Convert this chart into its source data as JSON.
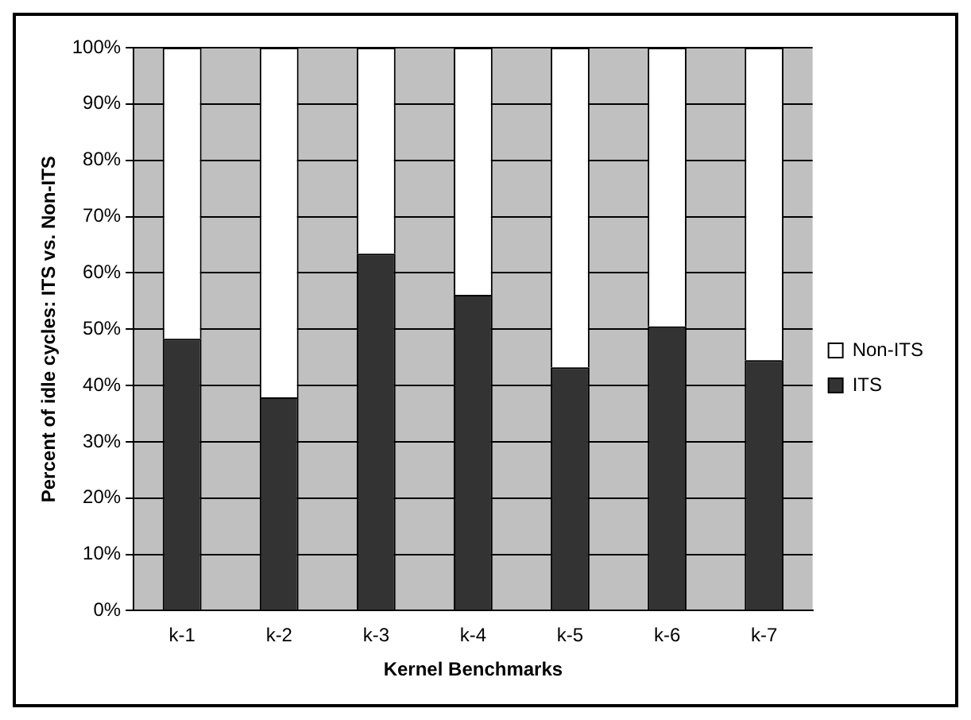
{
  "chart_data": {
    "type": "bar",
    "stacked": true,
    "xlabel": "Kernel Benchmarks",
    "ylabel": "Percent of idle cycles: ITS vs. Non-ITS",
    "categories": [
      "k-1",
      "k-2",
      "k-3",
      "k-4",
      "k-5",
      "k-6",
      "k-7"
    ],
    "series": [
      {
        "name": "ITS",
        "color": "#333333",
        "values": [
          48.3,
          37.9,
          63.4,
          56.1,
          43.2,
          50.5,
          44.5
        ]
      },
      {
        "name": "Non-ITS",
        "color": "#ffffff",
        "values": [
          51.7,
          62.1,
          36.6,
          43.9,
          56.8,
          49.5,
          55.5
        ]
      }
    ],
    "ylim": [
      0,
      100
    ],
    "yticks": [
      {
        "value": 0,
        "label": "0%"
      },
      {
        "value": 10,
        "label": "10%"
      },
      {
        "value": 20,
        "label": "20%"
      },
      {
        "value": 30,
        "label": "30%"
      },
      {
        "value": 40,
        "label": "40%"
      },
      {
        "value": 50,
        "label": "50%"
      },
      {
        "value": 60,
        "label": "60%"
      },
      {
        "value": 70,
        "label": "70%"
      },
      {
        "value": 80,
        "label": "80%"
      },
      {
        "value": 90,
        "label": "90%"
      },
      {
        "value": 100,
        "label": "100%"
      }
    ],
    "grid": "y",
    "legend": "right"
  }
}
